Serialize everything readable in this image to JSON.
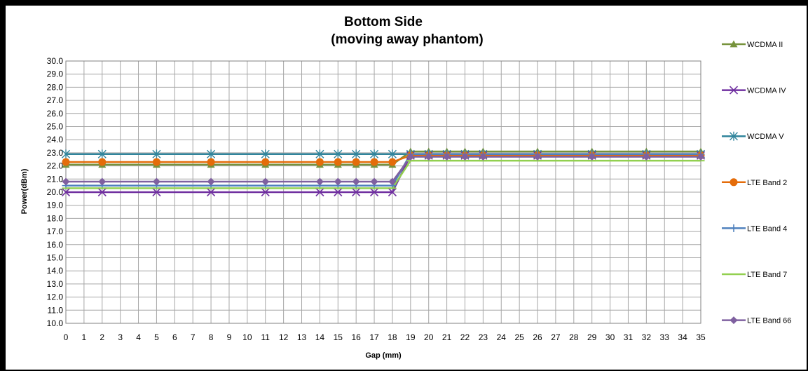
{
  "chart_data": {
    "type": "line",
    "title": "Bottom Side",
    "subtitle": "(moving away phantom)",
    "xlabel": "Gap (mm)",
    "ylabel": "Power(dBm)",
    "ylim": [
      10.0,
      30.0
    ],
    "y_ticks": [
      "10.0",
      "11.0",
      "12.0",
      "13.0",
      "14.0",
      "15.0",
      "16.0",
      "17.0",
      "18.0",
      "19.0",
      "20.0",
      "21.0",
      "22.0",
      "23.0",
      "24.0",
      "25.0",
      "26.0",
      "27.0",
      "28.0",
      "29.0",
      "30.0"
    ],
    "x_ticks": [
      "0",
      "1",
      "2",
      "3",
      "4",
      "5",
      "6",
      "7",
      "8",
      "9",
      "10",
      "11",
      "12",
      "13",
      "14",
      "15",
      "16",
      "17",
      "18",
      "19",
      "20",
      "21",
      "22",
      "23",
      "24",
      "25",
      "26",
      "27",
      "28",
      "29",
      "30",
      "31",
      "32",
      "33",
      "34",
      "35"
    ],
    "grid": true,
    "legend_position": "right",
    "x": [
      0,
      2,
      5,
      8,
      11,
      14,
      15,
      16,
      17,
      18,
      19,
      20,
      21,
      22,
      23,
      26,
      29,
      32,
      35
    ],
    "series": [
      {
        "name": "WCDMA II",
        "color": "#77933c",
        "marker": "triangle",
        "values": [
          22.1,
          22.1,
          22.1,
          22.1,
          22.1,
          22.1,
          22.1,
          22.1,
          22.1,
          22.1,
          23.1,
          23.1,
          23.1,
          23.1,
          23.1,
          23.1,
          23.1,
          23.1,
          23.1
        ]
      },
      {
        "name": "WCDMA IV",
        "color": "#7030a0",
        "marker": "x",
        "values": [
          20.0,
          20.0,
          20.0,
          20.0,
          20.0,
          20.0,
          20.0,
          20.0,
          20.0,
          20.0,
          22.8,
          22.8,
          22.8,
          22.8,
          22.8,
          22.8,
          22.8,
          22.8,
          22.8
        ]
      },
      {
        "name": "WCDMA V",
        "color": "#31859c",
        "marker": "star",
        "values": [
          22.9,
          22.9,
          22.9,
          22.9,
          22.9,
          22.9,
          22.9,
          22.9,
          22.9,
          22.9,
          22.9,
          22.9,
          22.9,
          22.9,
          22.9,
          22.9,
          22.9,
          22.9,
          22.9
        ]
      },
      {
        "name": "LTE Band 2",
        "color": "#e46c0a",
        "marker": "circle",
        "values": [
          22.3,
          22.3,
          22.3,
          22.3,
          22.3,
          22.3,
          22.3,
          22.3,
          22.3,
          22.3,
          22.8,
          22.8,
          22.8,
          22.8,
          22.8,
          22.8,
          22.8,
          22.8,
          22.8
        ]
      },
      {
        "name": "LTE Band 4",
        "color": "#4f81bd",
        "marker": "plus",
        "values": [
          20.5,
          20.5,
          20.5,
          20.5,
          20.5,
          20.5,
          20.5,
          20.5,
          20.5,
          20.5,
          22.9,
          22.9,
          22.9,
          22.9,
          22.9,
          22.9,
          22.9,
          22.9,
          22.9
        ]
      },
      {
        "name": "LTE Band 7",
        "color": "#92d050",
        "marker": "dash",
        "values": [
          20.3,
          20.3,
          20.3,
          20.3,
          20.3,
          20.3,
          20.3,
          20.3,
          20.3,
          20.3,
          22.4,
          22.4,
          22.4,
          22.4,
          22.4,
          22.4,
          22.4,
          22.4,
          22.4
        ]
      },
      {
        "name": "LTE Band 66",
        "color": "#7f60a0",
        "marker": "diamond",
        "values": [
          20.8,
          20.8,
          20.8,
          20.8,
          20.8,
          20.8,
          20.8,
          20.8,
          20.8,
          20.8,
          22.7,
          22.7,
          22.7,
          22.7,
          22.7,
          22.7,
          22.7,
          22.7,
          22.7
        ]
      }
    ]
  }
}
